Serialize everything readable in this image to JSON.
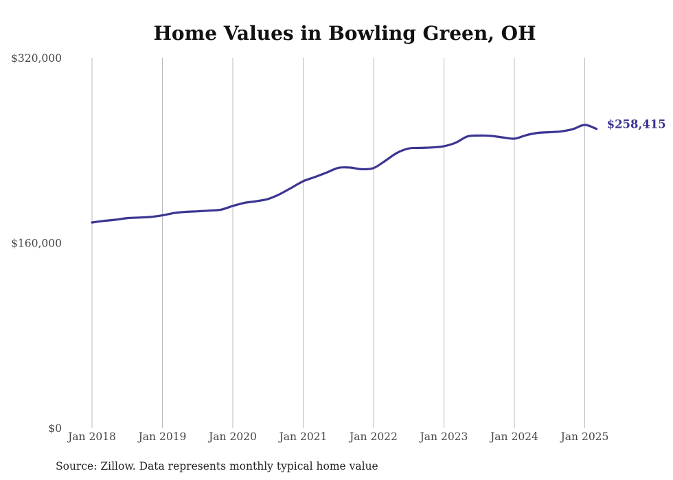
{
  "chart_data": {
    "type": "line",
    "title": "Home Values in Bowling Green, OH",
    "xlabel": "",
    "ylabel": "",
    "ylim": [
      0,
      320000
    ],
    "y_ticks": [
      0,
      160000,
      320000
    ],
    "y_tick_labels": [
      "$0",
      "$160,000",
      "$320,000"
    ],
    "x_ticks": [
      "2018-01",
      "2019-01",
      "2020-01",
      "2021-01",
      "2022-01",
      "2023-01",
      "2024-01",
      "2025-01"
    ],
    "x_tick_labels": [
      "Jan 2018",
      "Jan 2019",
      "Jan 2020",
      "Jan 2021",
      "Jan 2022",
      "Jan 2023",
      "Jan 2024",
      "Jan 2025"
    ],
    "grid": "vertical",
    "line_color": "#3b3592",
    "grid_color": "#bbbbbb",
    "series": [
      {
        "x": [
          "2018-01",
          "2018-03",
          "2018-05",
          "2018-07",
          "2018-09",
          "2018-11",
          "2019-01",
          "2019-03",
          "2019-05",
          "2019-07",
          "2019-09",
          "2019-11",
          "2020-01",
          "2020-03",
          "2020-05",
          "2020-07",
          "2020-09",
          "2020-11",
          "2021-01",
          "2021-03",
          "2021-05",
          "2021-07",
          "2021-09",
          "2021-11",
          "2022-01",
          "2022-03",
          "2022-05",
          "2022-07",
          "2022-09",
          "2022-11",
          "2023-01",
          "2023-03",
          "2023-05",
          "2023-07",
          "2023-09",
          "2023-11",
          "2024-01",
          "2024-03",
          "2024-05",
          "2024-07",
          "2024-09",
          "2024-11",
          "2025-01",
          "2025-03"
        ],
        "values": [
          177500,
          178900,
          179900,
          181300,
          181800,
          182300,
          183700,
          185700,
          186700,
          187200,
          187800,
          188600,
          191800,
          194500,
          195900,
          197800,
          202000,
          207500,
          213200,
          216800,
          220700,
          224800,
          225000,
          223600,
          224600,
          230900,
          237700,
          241500,
          242000,
          242400,
          243500,
          246500,
          251900,
          252700,
          252400,
          251100,
          250000,
          253000,
          255000,
          255600,
          256300,
          258300,
          261900,
          258415
        ]
      }
    ],
    "end_label": "$258,415",
    "source": "Source: Zillow. Data represents monthly typical home value"
  }
}
